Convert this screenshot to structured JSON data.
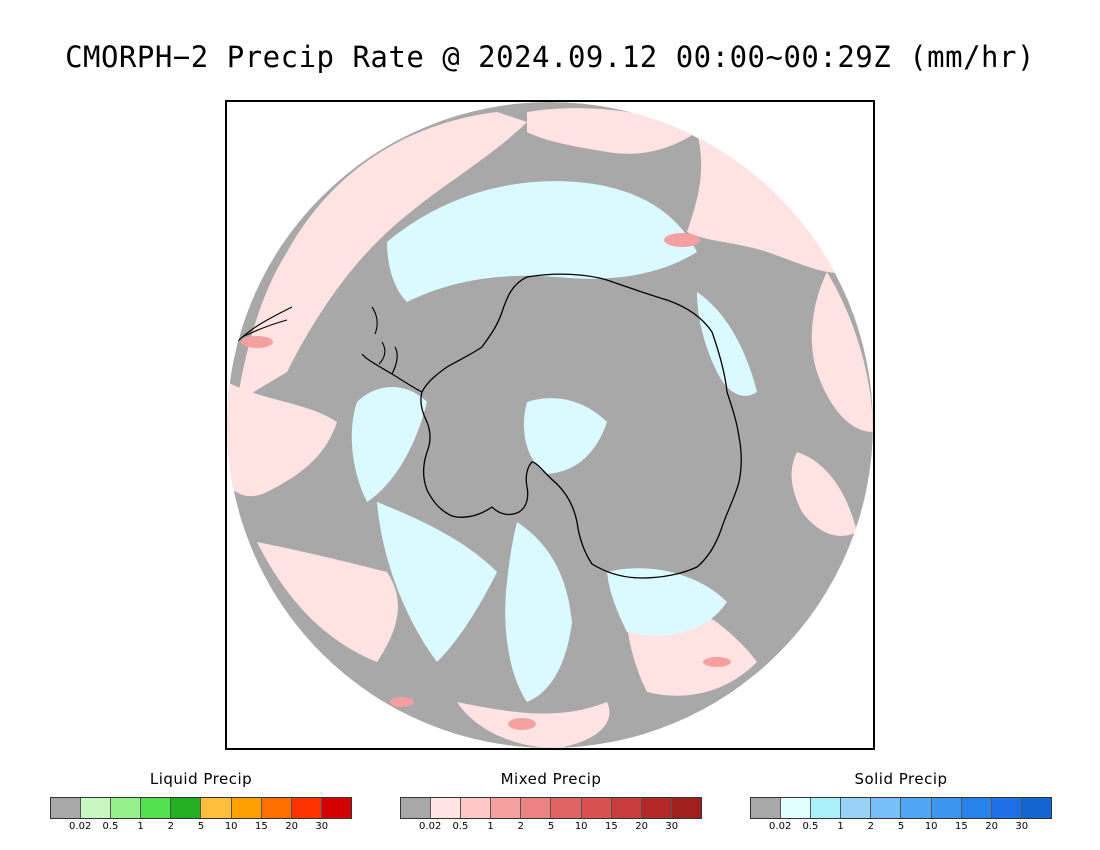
{
  "title": "CMORPH−2 Precip Rate @ 2024.09.12 00:00~00:29Z (mm/hr)",
  "colors": {
    "no_precip_gray": "#a8a8a8",
    "mixed_light": "#ffe2e2",
    "solid_light": "#dafaff",
    "coast_line": "#000000"
  },
  "legends": [
    {
      "title": "Liquid Precip",
      "colors": [
        "#a8a8a8",
        "#c8f8c0",
        "#96f08c",
        "#50e050",
        "#22b022",
        "#ffbe3c",
        "#ffa000",
        "#ff6e00",
        "#ff3200",
        "#d20000"
      ],
      "ticks": [
        "0.02",
        "0.5",
        "1",
        "2",
        "5",
        "10",
        "15",
        "20",
        "30"
      ]
    },
    {
      "title": "Mixed Precip",
      "colors": [
        "#a8a8a8",
        "#ffe2e2",
        "#ffc8c8",
        "#f4a0a0",
        "#ec8282",
        "#e06464",
        "#d85050",
        "#c83c3c",
        "#b42828",
        "#a01e1e"
      ],
      "ticks": [
        "0.02",
        "0.5",
        "1",
        "2",
        "5",
        "10",
        "15",
        "20",
        "30"
      ]
    },
    {
      "title": "Solid Precip",
      "colors": [
        "#a8a8a8",
        "#e0ffff",
        "#aaeefa",
        "#96d2fa",
        "#78bef8",
        "#50a5f5",
        "#3c96f0",
        "#2882eb",
        "#1e6ee6",
        "#1464d2"
      ],
      "ticks": [
        "0.02",
        "0.5",
        "1",
        "2",
        "5",
        "10",
        "15",
        "20",
        "30"
      ]
    }
  ]
}
